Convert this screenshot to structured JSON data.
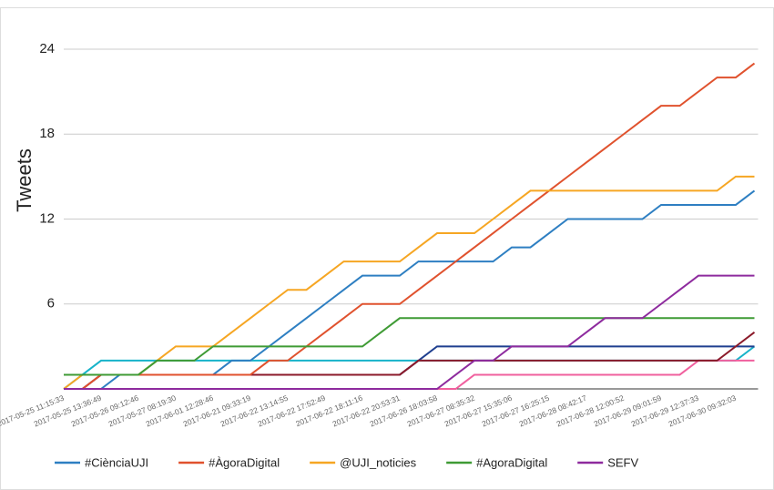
{
  "chart_data": {
    "type": "line",
    "y_label": "Tweets",
    "categories": [
      "2017-05-25 11:15:33",
      null,
      "2017-05-25 13:36:49",
      null,
      "2017-05-26 09:12:46",
      null,
      "2017-05-27 08:19:30",
      null,
      "2017-06-01 12:28:46",
      null,
      "2017-06-21 09:33:19",
      null,
      "2017-06-22 13:14:55",
      null,
      "2017-06-22 17:52:49",
      null,
      "2017-06-22 18:11:16",
      null,
      "2017-06-22 20:53:31",
      null,
      "2017-06-26 18:03:58",
      null,
      "2017-06-27 08:35:32",
      null,
      "2017-06-27 15:35:06",
      null,
      "2017-06-27 16:25:15",
      null,
      "2017-06-28 08:42:17",
      null,
      "2017-06-28 12:00:52",
      null,
      "2017-06-29 09:01:59",
      null,
      "2017-06-29 12:37:33",
      null,
      "2017-06-30 09:32:03",
      null
    ],
    "ylim": [
      0,
      24
    ],
    "yticks": [
      6,
      12,
      18,
      24
    ],
    "grid": true,
    "legend": "bottom",
    "series": [
      {
        "color": "#17b3c9",
        "values": [
          0,
          1,
          2,
          2,
          2,
          2,
          2,
          2,
          2,
          2,
          2,
          2,
          2,
          2,
          2,
          2,
          2,
          2,
          2,
          2,
          2,
          2,
          2,
          2,
          2,
          2,
          2,
          2,
          2,
          2,
          2,
          2,
          2,
          2,
          2,
          2,
          2,
          3
        ]
      },
      {
        "color": "#f0609e",
        "values": [
          0,
          0,
          0,
          0,
          0,
          0,
          0,
          0,
          0,
          0,
          0,
          0,
          0,
          0,
          0,
          0,
          0,
          0,
          0,
          0,
          0,
          0,
          1,
          1,
          1,
          1,
          1,
          1,
          1,
          1,
          1,
          1,
          1,
          1,
          2,
          2,
          2,
          2
        ]
      },
      {
        "color": "#1f3f8f",
        "values": [
          0,
          0,
          1,
          1,
          1,
          1,
          1,
          1,
          1,
          1,
          1,
          1,
          1,
          1,
          1,
          1,
          1,
          1,
          1,
          2,
          3,
          3,
          3,
          3,
          3,
          3,
          3,
          3,
          3,
          3,
          3,
          3,
          3,
          3,
          3,
          3,
          3,
          3
        ]
      },
      {
        "color": "#8b1a2a",
        "values": [
          0,
          0,
          1,
          1,
          1,
          1,
          1,
          1,
          1,
          1,
          1,
          1,
          1,
          1,
          1,
          1,
          1,
          1,
          1,
          2,
          2,
          2,
          2,
          2,
          2,
          2,
          2,
          2,
          2,
          2,
          2,
          2,
          2,
          2,
          2,
          2,
          3,
          4
        ]
      },
      {
        "name": "#CiènciaUJI",
        "color": "#2e7fc2",
        "values": [
          0,
          0,
          0,
          1,
          1,
          1,
          1,
          1,
          1,
          2,
          2,
          3,
          4,
          5,
          6,
          7,
          8,
          8,
          8,
          9,
          9,
          9,
          9,
          9,
          10,
          10,
          11,
          12,
          12,
          12,
          12,
          12,
          13,
          13,
          13,
          13,
          13,
          14
        ]
      },
      {
        "name": "#ÀgoraDigital",
        "color": "#e0522e",
        "values": [
          0,
          0,
          1,
          1,
          1,
          1,
          1,
          1,
          1,
          1,
          1,
          2,
          2,
          3,
          4,
          5,
          6,
          6,
          6,
          7,
          8,
          9,
          10,
          11,
          12,
          13,
          14,
          15,
          16,
          17,
          18,
          19,
          20,
          20,
          21,
          22,
          22,
          23
        ]
      },
      {
        "name": "@UJI_noticies",
        "color": "#f6a623",
        "values": [
          0,
          1,
          1,
          1,
          1,
          2,
          3,
          3,
          3,
          4,
          5,
          6,
          7,
          7,
          8,
          9,
          9,
          9,
          9,
          10,
          11,
          11,
          11,
          12,
          13,
          14,
          14,
          14,
          14,
          14,
          14,
          14,
          14,
          14,
          14,
          14,
          15,
          15
        ]
      },
      {
        "name": "#AgoraDigital",
        "color": "#3f9b35",
        "values": [
          1,
          1,
          1,
          1,
          1,
          2,
          2,
          2,
          3,
          3,
          3,
          3,
          3,
          3,
          3,
          3,
          3,
          4,
          5,
          5,
          5,
          5,
          5,
          5,
          5,
          5,
          5,
          5,
          5,
          5,
          5,
          5,
          5,
          5,
          5,
          5,
          5,
          5
        ]
      },
      {
        "name": "SEFV",
        "color": "#8e2b9e",
        "values": [
          0,
          0,
          0,
          0,
          0,
          0,
          0,
          0,
          0,
          0,
          0,
          0,
          0,
          0,
          0,
          0,
          0,
          0,
          0,
          0,
          0,
          1,
          2,
          2,
          3,
          3,
          3,
          3,
          4,
          5,
          5,
          5,
          6,
          7,
          8,
          8,
          8,
          8
        ]
      }
    ]
  }
}
